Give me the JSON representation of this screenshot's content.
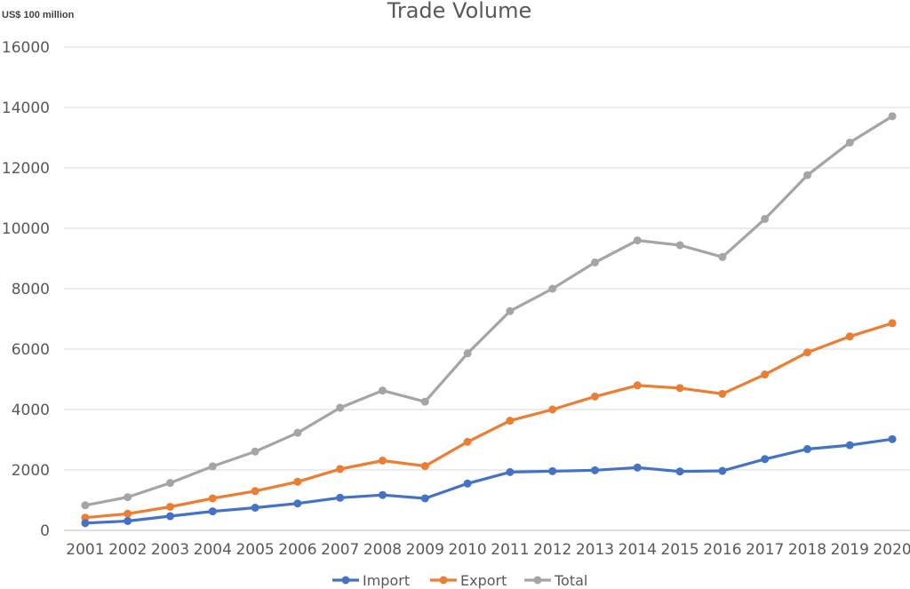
{
  "chart_data": {
    "type": "line",
    "title": "Trade Volume",
    "unit_label": "US$ 100 million",
    "xlabel": "",
    "ylabel": "",
    "categories": [
      "2001",
      "2002",
      "2003",
      "2004",
      "2005",
      "2006",
      "2007",
      "2008",
      "2009",
      "2010",
      "2011",
      "2012",
      "2013",
      "2014",
      "2015",
      "2016",
      "2017",
      "2018",
      "2019",
      "2020"
    ],
    "ylim": [
      0,
      16000
    ],
    "yticks": [
      0,
      2000,
      4000,
      6000,
      8000,
      10000,
      12000,
      14000,
      16000
    ],
    "grid": true,
    "legend_position": "bottom",
    "series": [
      {
        "name": "Import",
        "color": "#4472C4",
        "values": [
          240,
          310,
          470,
          630,
          750,
          890,
          1080,
          1170,
          1060,
          1550,
          1930,
          1960,
          1990,
          2080,
          1950,
          1970,
          2360,
          2690,
          2820,
          3020
        ]
      },
      {
        "name": "Export",
        "color": "#ED7D31",
        "values": [
          420,
          550,
          780,
          1060,
          1300,
          1610,
          2030,
          2310,
          2130,
          2930,
          3630,
          4000,
          4430,
          4800,
          4710,
          4520,
          5160,
          5890,
          6420,
          6860
        ]
      },
      {
        "name": "Total",
        "color": "#A5A5A5",
        "values": [
          830,
          1100,
          1570,
          2120,
          2610,
          3230,
          4060,
          4630,
          4260,
          5860,
          7260,
          8000,
          8870,
          9600,
          9440,
          9050,
          10310,
          11760,
          12840,
          13710
        ]
      }
    ]
  }
}
